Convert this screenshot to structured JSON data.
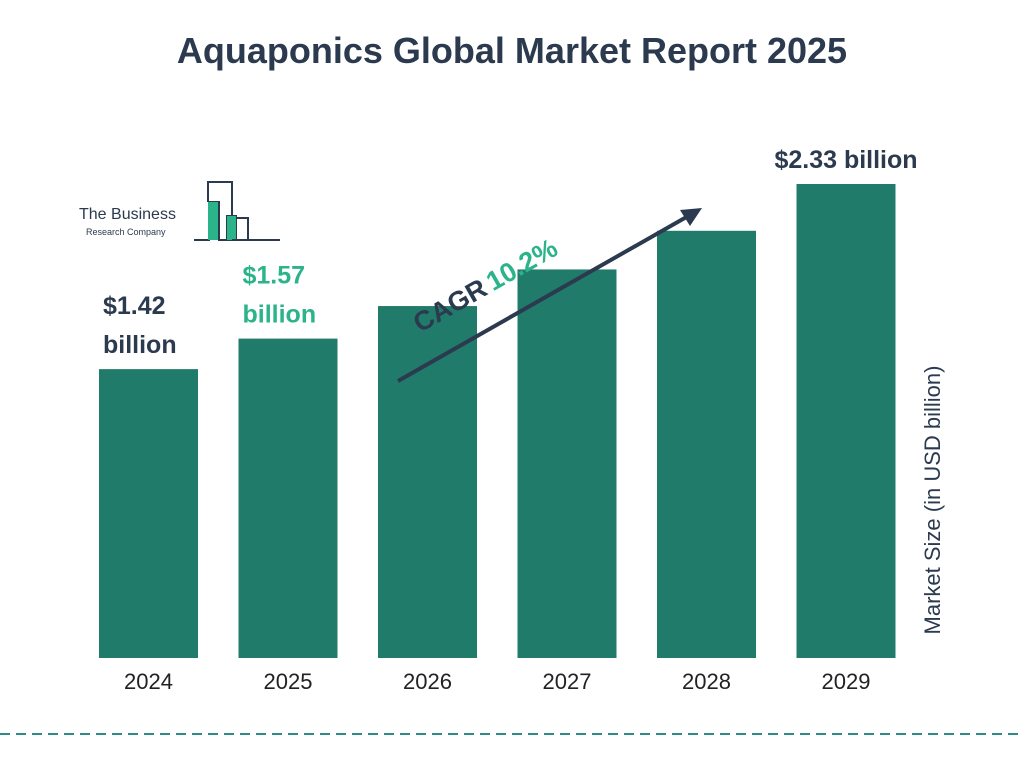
{
  "title": "Aquaponics Global Market Report 2025",
  "logo": {
    "line1": "The Business",
    "line2": "Research Company"
  },
  "colors": {
    "bar": "#217b6b",
    "dark_text": "#2b3a4e",
    "accent": "#2bb38a",
    "dash": "#2a8c84"
  },
  "chart_data": {
    "type": "bar",
    "categories": [
      "2024",
      "2025",
      "2026",
      "2027",
      "2028",
      "2029"
    ],
    "values": [
      1.42,
      1.57,
      1.73,
      1.91,
      2.1,
      2.33
    ],
    "ylabel": "Market Size (in USD billion)",
    "annotations": [
      {
        "category": "2024",
        "text": [
          "$1.42",
          "billion"
        ],
        "color": "dark"
      },
      {
        "category": "2025",
        "text": [
          "$1.57",
          "billion"
        ],
        "color": "accent"
      },
      {
        "category": "2029",
        "text": [
          "$2.33 billion"
        ],
        "color": "dark"
      }
    ],
    "cagr": {
      "label": "CAGR",
      "value": "10.2%"
    }
  }
}
